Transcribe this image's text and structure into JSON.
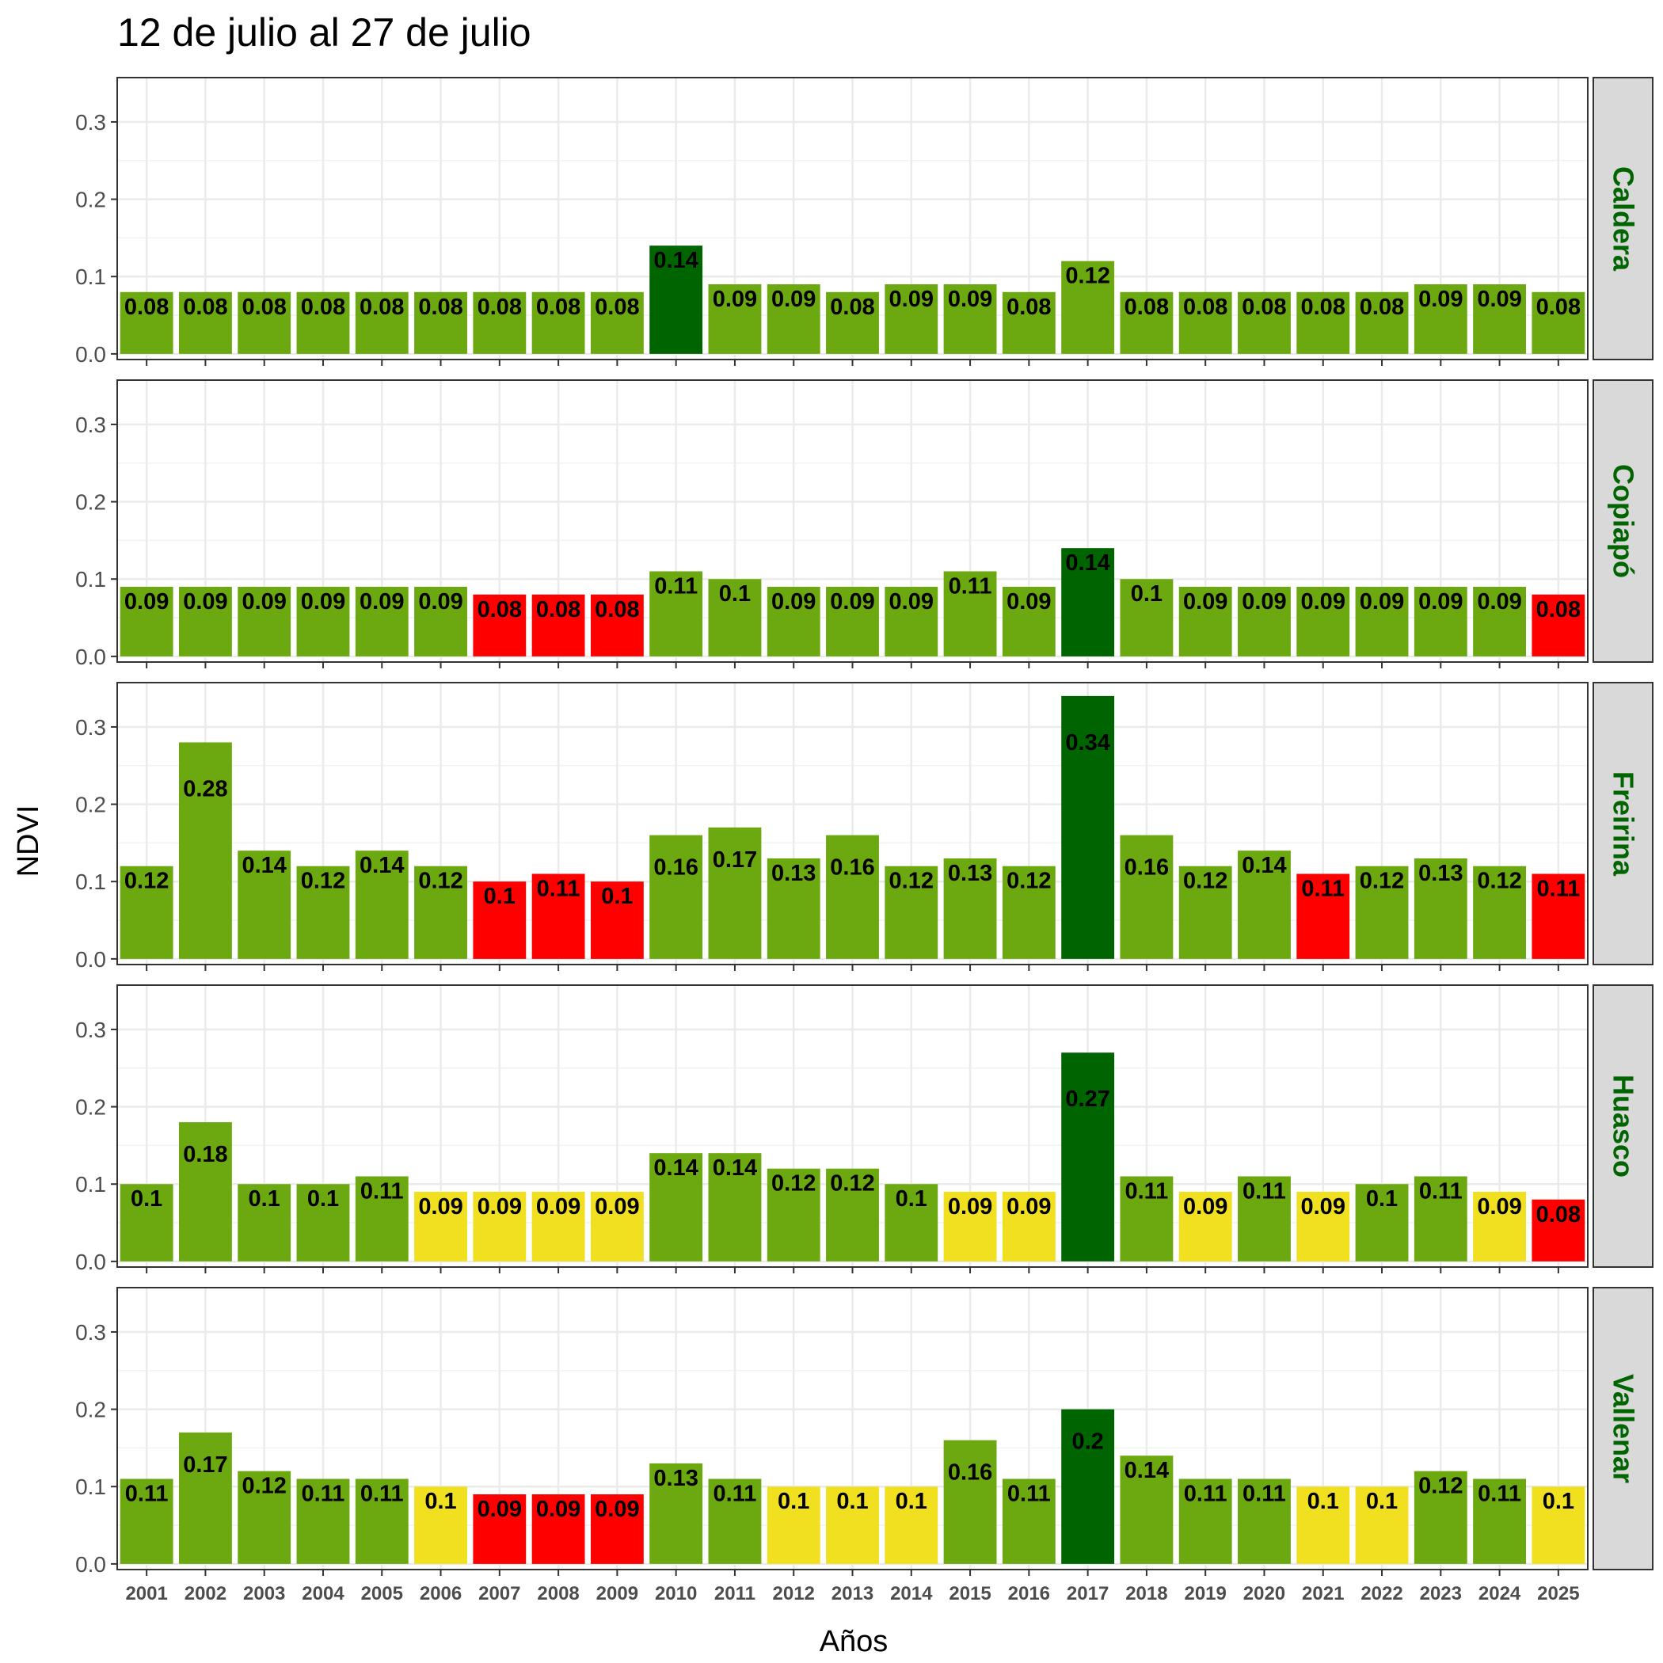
{
  "chart_data": {
    "type": "bar",
    "title": "12 de julio al 27 de julio",
    "xlabel": "Años",
    "ylabel": "NDVI",
    "ylim": [
      0,
      0.35
    ],
    "yticks": [
      "0.0",
      "0.1",
      "0.2",
      "0.3"
    ],
    "grid": true,
    "categories": [
      "2001",
      "2002",
      "2003",
      "2004",
      "2005",
      "2006",
      "2007",
      "2008",
      "2009",
      "2010",
      "2011",
      "2012",
      "2013",
      "2014",
      "2015",
      "2016",
      "2017",
      "2018",
      "2019",
      "2020",
      "2021",
      "2022",
      "2023",
      "2024",
      "2025"
    ],
    "colors": {
      "green": "#6ca80f",
      "dark_green": "#006400",
      "red": "#ff0000",
      "yellow": "#f0e020"
    },
    "panels": [
      {
        "name": "Caldera",
        "values": [
          0.08,
          0.08,
          0.08,
          0.08,
          0.08,
          0.08,
          0.08,
          0.08,
          0.08,
          0.14,
          0.09,
          0.09,
          0.08,
          0.09,
          0.09,
          0.08,
          0.12,
          0.08,
          0.08,
          0.08,
          0.08,
          0.08,
          0.09,
          0.09,
          0.08
        ],
        "labels": [
          "0.08",
          "0.08",
          "0.08",
          "0.08",
          "0.08",
          "0.08",
          "0.08",
          "0.08",
          "0.08",
          "0.14",
          "0.09",
          "0.09",
          "0.08",
          "0.09",
          "0.09",
          "0.08",
          "0.12",
          "0.08",
          "0.08",
          "0.08",
          "0.08",
          "0.08",
          "0.09",
          "0.09",
          "0.08"
        ],
        "colors": [
          "green",
          "green",
          "green",
          "green",
          "green",
          "green",
          "green",
          "green",
          "green",
          "dark_green",
          "green",
          "green",
          "green",
          "green",
          "green",
          "green",
          "green",
          "green",
          "green",
          "green",
          "green",
          "green",
          "green",
          "green",
          "green"
        ]
      },
      {
        "name": "Copiapó",
        "values": [
          0.09,
          0.09,
          0.09,
          0.09,
          0.09,
          0.09,
          0.08,
          0.08,
          0.08,
          0.11,
          0.1,
          0.09,
          0.09,
          0.09,
          0.11,
          0.09,
          0.14,
          0.1,
          0.09,
          0.09,
          0.09,
          0.09,
          0.09,
          0.09,
          0.08
        ],
        "labels": [
          "0.09",
          "0.09",
          "0.09",
          "0.09",
          "0.09",
          "0.09",
          "0.08",
          "0.08",
          "0.08",
          "0.11",
          "0.1",
          "0.09",
          "0.09",
          "0.09",
          "0.11",
          "0.09",
          "0.14",
          "0.1",
          "0.09",
          "0.09",
          "0.09",
          "0.09",
          "0.09",
          "0.09",
          "0.08"
        ],
        "colors": [
          "green",
          "green",
          "green",
          "green",
          "green",
          "green",
          "red",
          "red",
          "red",
          "green",
          "green",
          "green",
          "green",
          "green",
          "green",
          "green",
          "dark_green",
          "green",
          "green",
          "green",
          "green",
          "green",
          "green",
          "green",
          "red"
        ]
      },
      {
        "name": "Freirina",
        "values": [
          0.12,
          0.28,
          0.14,
          0.12,
          0.14,
          0.12,
          0.1,
          0.11,
          0.1,
          0.16,
          0.17,
          0.13,
          0.16,
          0.12,
          0.13,
          0.12,
          0.34,
          0.16,
          0.12,
          0.14,
          0.11,
          0.12,
          0.13,
          0.12,
          0.11
        ],
        "labels": [
          "0.12",
          "0.28",
          "0.14",
          "0.12",
          "0.14",
          "0.12",
          "0.1",
          "0.11",
          "0.1",
          "0.16",
          "0.17",
          "0.13",
          "0.16",
          "0.12",
          "0.13",
          "0.12",
          "0.34",
          "0.16",
          "0.12",
          "0.14",
          "0.11",
          "0.12",
          "0.13",
          "0.12",
          "0.11"
        ],
        "colors": [
          "green",
          "green",
          "green",
          "green",
          "green",
          "green",
          "red",
          "red",
          "red",
          "green",
          "green",
          "green",
          "green",
          "green",
          "green",
          "green",
          "dark_green",
          "green",
          "green",
          "green",
          "red",
          "green",
          "green",
          "green",
          "red"
        ]
      },
      {
        "name": "Huasco",
        "values": [
          0.1,
          0.18,
          0.1,
          0.1,
          0.11,
          0.09,
          0.09,
          0.09,
          0.09,
          0.14,
          0.14,
          0.12,
          0.12,
          0.1,
          0.09,
          0.09,
          0.27,
          0.11,
          0.09,
          0.11,
          0.09,
          0.1,
          0.11,
          0.09,
          0.08
        ],
        "labels": [
          "0.1",
          "0.18",
          "0.1",
          "0.1",
          "0.11",
          "0.09",
          "0.09",
          "0.09",
          "0.09",
          "0.14",
          "0.14",
          "0.12",
          "0.12",
          "0.1",
          "0.09",
          "0.09",
          "0.27",
          "0.11",
          "0.09",
          "0.11",
          "0.09",
          "0.1",
          "0.11",
          "0.09",
          "0.08"
        ],
        "colors": [
          "green",
          "green",
          "green",
          "green",
          "green",
          "yellow",
          "yellow",
          "yellow",
          "yellow",
          "green",
          "green",
          "green",
          "green",
          "green",
          "yellow",
          "yellow",
          "dark_green",
          "green",
          "yellow",
          "green",
          "yellow",
          "green",
          "green",
          "yellow",
          "red"
        ]
      },
      {
        "name": "Vallenar",
        "values": [
          0.11,
          0.17,
          0.12,
          0.11,
          0.11,
          0.1,
          0.09,
          0.09,
          0.09,
          0.13,
          0.11,
          0.1,
          0.1,
          0.1,
          0.16,
          0.11,
          0.2,
          0.14,
          0.11,
          0.11,
          0.1,
          0.1,
          0.12,
          0.11,
          0.1
        ],
        "labels": [
          "0.11",
          "0.17",
          "0.12",
          "0.11",
          "0.11",
          "0.1",
          "0.09",
          "0.09",
          "0.09",
          "0.13",
          "0.11",
          "0.1",
          "0.1",
          "0.1",
          "0.16",
          "0.11",
          "0.2",
          "0.14",
          "0.11",
          "0.11",
          "0.1",
          "0.1",
          "0.12",
          "0.11",
          "0.1"
        ],
        "colors": [
          "green",
          "green",
          "green",
          "green",
          "green",
          "yellow",
          "red",
          "red",
          "red",
          "green",
          "green",
          "yellow",
          "yellow",
          "yellow",
          "green",
          "green",
          "dark_green",
          "green",
          "green",
          "green",
          "yellow",
          "yellow",
          "green",
          "green",
          "yellow"
        ]
      }
    ]
  }
}
